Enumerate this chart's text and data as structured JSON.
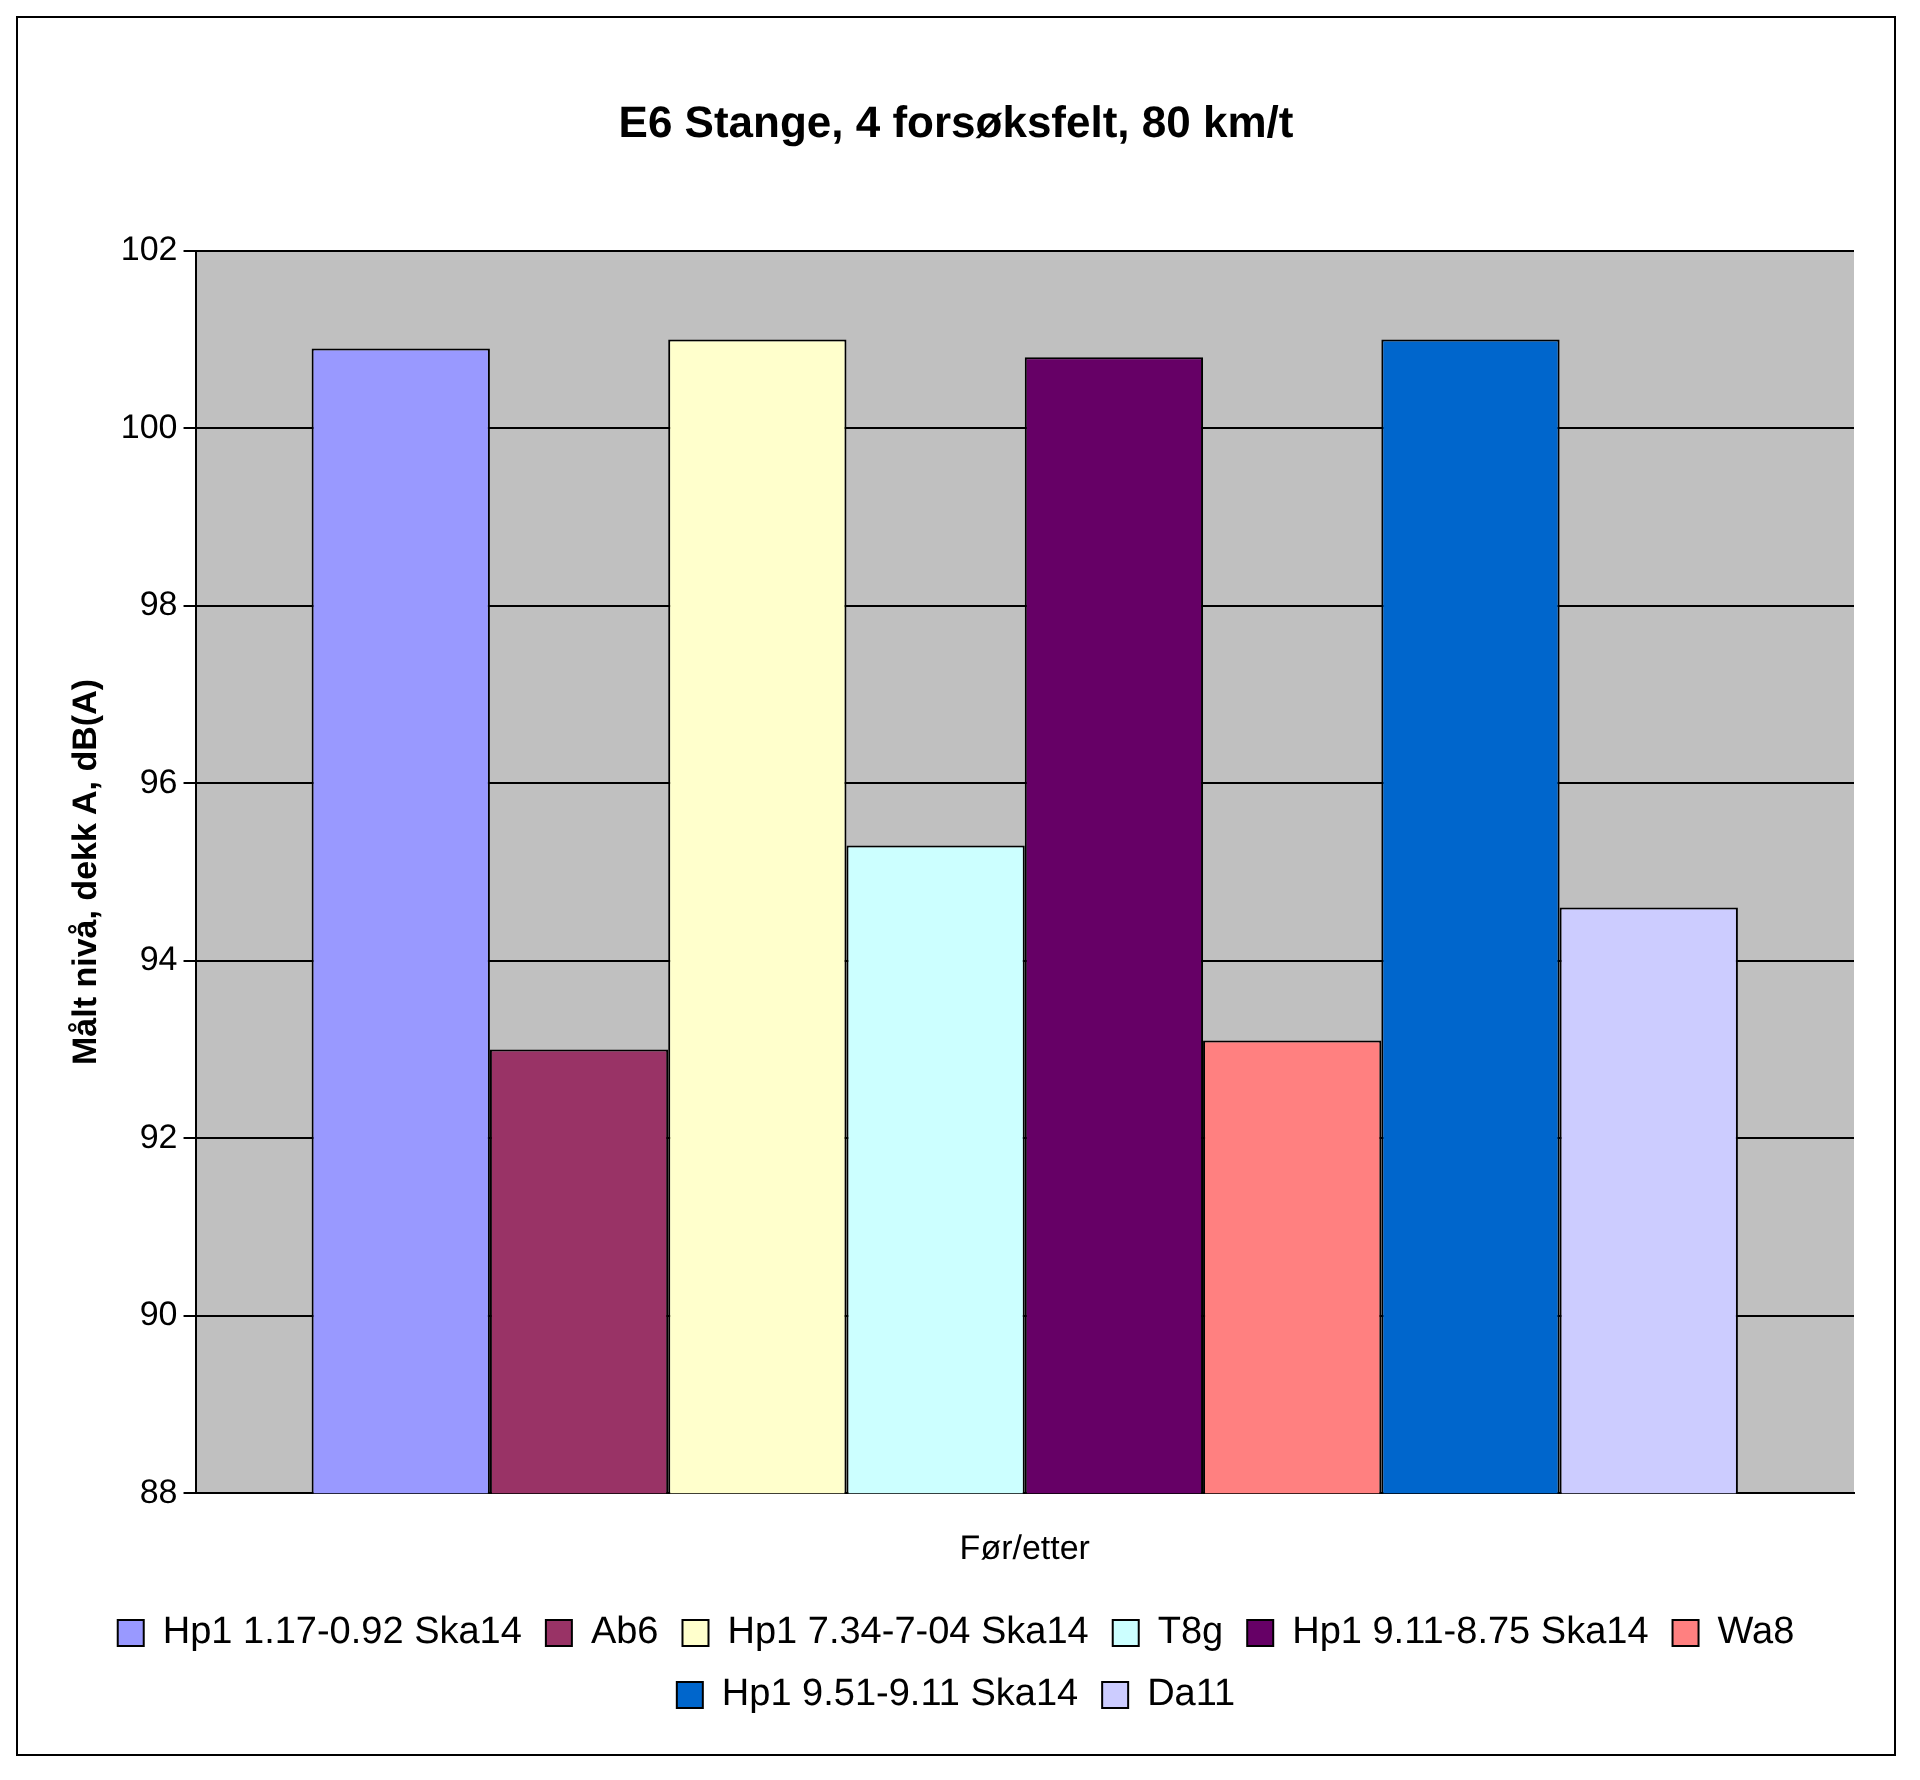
{
  "chart_data": {
    "type": "bar",
    "title": "E6 Stange, 4 forsøksfelt, 80 km/t",
    "ylabel": "Målt nivå, dekk A, dB(A)",
    "categories": [
      "Før/etter"
    ],
    "series": [
      {
        "name": "Hp1 1.17-0.92 Ska14",
        "color": "#9999ff",
        "values": [
          100.9
        ]
      },
      {
        "name": "Ab6",
        "color": "#993366",
        "values": [
          93.0
        ]
      },
      {
        "name": "Hp1 7.34-7-04 Ska14",
        "color": "#ffffcc",
        "values": [
          101.0
        ]
      },
      {
        "name": "T8g",
        "color": "#ccffff",
        "values": [
          95.3
        ]
      },
      {
        "name": "Hp1 9.11-8.75 Ska14",
        "color": "#660066",
        "values": [
          100.8
        ]
      },
      {
        "name": "Wa8",
        "color": "#ff8080",
        "values": [
          93.1
        ]
      },
      {
        "name": "Hp1 9.51-9.11 Ska14",
        "color": "#0066cc",
        "values": [
          101.0
        ]
      },
      {
        "name": "Da11",
        "color": "#ccccff",
        "values": [
          94.6
        ]
      }
    ],
    "ylim": [
      88,
      102
    ],
    "yticks": [
      88,
      90,
      92,
      94,
      96,
      98,
      100,
      102
    ],
    "grid": "y",
    "legend": "bottom"
  }
}
